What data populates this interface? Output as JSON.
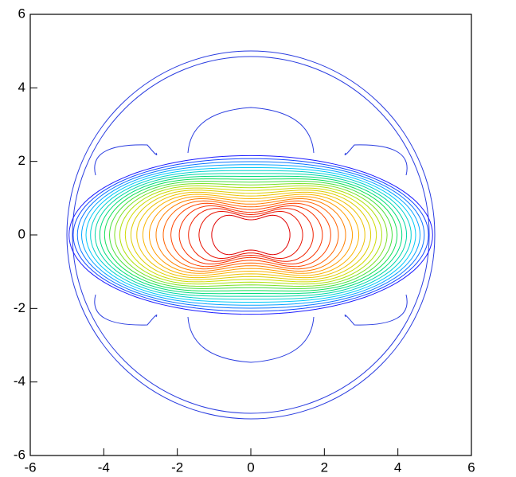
{
  "chart_data": {
    "type": "contour",
    "xlim": [
      -6,
      6
    ],
    "ylim": [
      -6,
      6
    ],
    "xticks": [
      -6,
      -4,
      -2,
      0,
      2,
      4,
      6
    ],
    "yticks": [
      -6,
      -4,
      -2,
      0,
      2,
      4,
      6
    ],
    "levels": [
      0.02,
      0.06,
      0.1,
      0.14,
      0.18,
      0.22,
      0.26,
      0.3,
      0.34,
      0.38,
      0.42,
      0.46,
      0.5,
      0.54,
      0.58,
      0.62,
      0.66,
      0.7,
      0.74,
      0.78,
      0.82,
      0.86,
      0.9,
      0.94
    ],
    "colormap": [
      "#1a1aff",
      "#00c8ff",
      "#00e060",
      "#c8e000",
      "#ffb000",
      "#ff4000",
      "#e00000"
    ]
  }
}
